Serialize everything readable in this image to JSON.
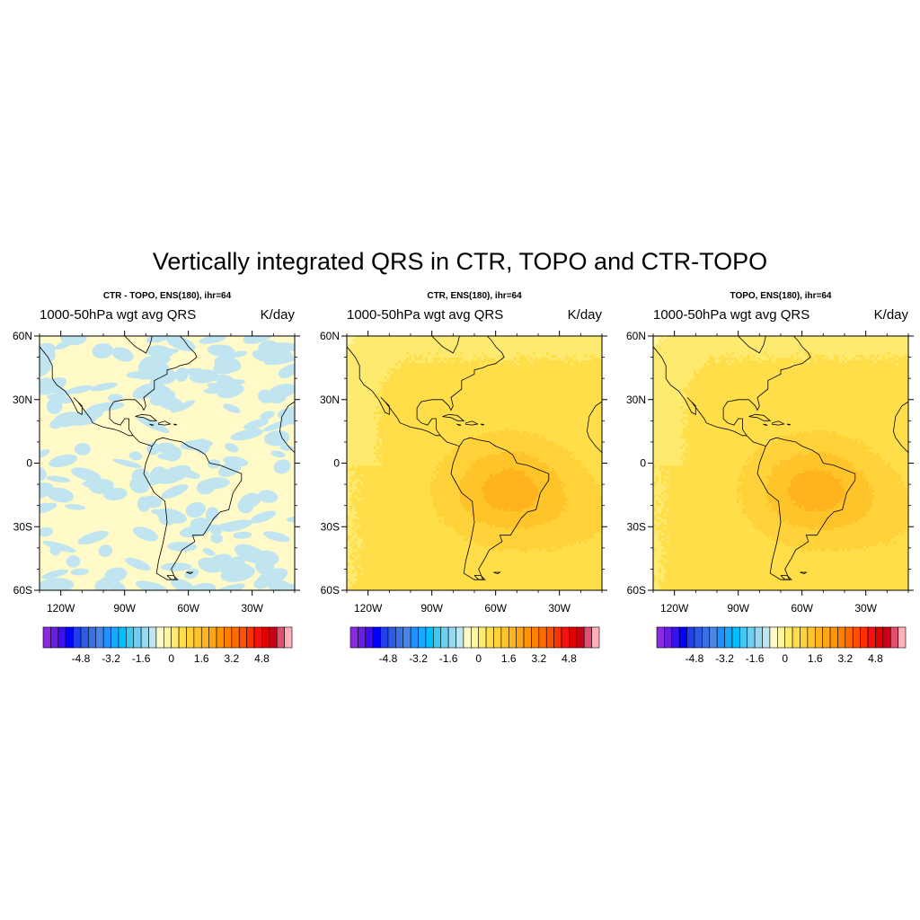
{
  "main_title": "Vertically integrated QRS in CTR, TOPO and CTR-TOPO",
  "panels": [
    {
      "title": "CTR - TOPO, ENS(180), ihr=64",
      "left_string": "1000-50hPa wgt avg QRS",
      "right_string": "K/day",
      "field": "difference"
    },
    {
      "title": "CTR, ENS(180), ihr=64",
      "left_string": "1000-50hPa wgt avg QRS",
      "right_string": "K/day",
      "field": "ctr"
    },
    {
      "title": "TOPO, ENS(180), ihr=64",
      "left_string": "1000-50hPa wgt avg QRS",
      "right_string": "K/day",
      "field": "topo"
    }
  ],
  "lat_labels": [
    "60N",
    "30N",
    "0",
    "30S",
    "60S"
  ],
  "lat_values": [
    60,
    30,
    0,
    -30,
    -60
  ],
  "lon_labels": [
    "120W",
    "90W",
    "60W",
    "30W"
  ],
  "lon_values": [
    -120,
    -90,
    -60,
    -30
  ],
  "lon_range": [
    -130,
    -10
  ],
  "lat_range": [
    -60,
    60
  ],
  "colorbar": {
    "levels": [
      -6.4,
      -6.0,
      -5.6,
      -5.2,
      -4.8,
      -4.4,
      -4.0,
      -3.6,
      -3.2,
      -2.8,
      -2.4,
      -2.0,
      -1.6,
      -1.2,
      -0.8,
      -0.4,
      0,
      0.4,
      0.8,
      1.2,
      1.6,
      2.0,
      2.4,
      2.8,
      3.2,
      3.6,
      4.0,
      4.4,
      4.8,
      5.2,
      5.6,
      6.0,
      6.4
    ],
    "labels": [
      "-4.8",
      "-3.2",
      "-1.6",
      "0",
      "1.6",
      "3.2",
      "4.8"
    ],
    "label_values": [
      -4.8,
      -3.2,
      -1.6,
      0,
      1.6,
      3.2,
      4.8
    ],
    "colors": [
      "#8a2be2",
      "#6a1fe0",
      "#3a0ff0",
      "#0000ff",
      "#2040ee",
      "#2d5be6",
      "#3a70e3",
      "#4a86e8",
      "#1e90ff",
      "#18a8ff",
      "#00bfff",
      "#40c8f0",
      "#6fcfef",
      "#98d8f0",
      "#c0e4f0",
      "#fffac8",
      "#fff59a",
      "#ffea70",
      "#ffde4a",
      "#ffd23a",
      "#ffc42a",
      "#ffb41e",
      "#ffa412",
      "#ff9400",
      "#ff8000",
      "#ff6a00",
      "#ff5000",
      "#ff3000",
      "#f81010",
      "#e00000",
      "#c80018",
      "#e05070",
      "#ffb0b8"
    ]
  },
  "chart_data": {
    "type": "heatmap",
    "units": "K/day",
    "panels": [
      {
        "title": "CTR - TOPO, ENS(180), ihr=64",
        "value_range": [
          -0.4,
          0.4
        ]
      },
      {
        "title": "CTR, ENS(180), ihr=64",
        "value_range": [
          0.4,
          2.4
        ]
      },
      {
        "title": "TOPO, ENS(180), ihr=64",
        "value_range": [
          0.4,
          2.4
        ]
      }
    ]
  }
}
